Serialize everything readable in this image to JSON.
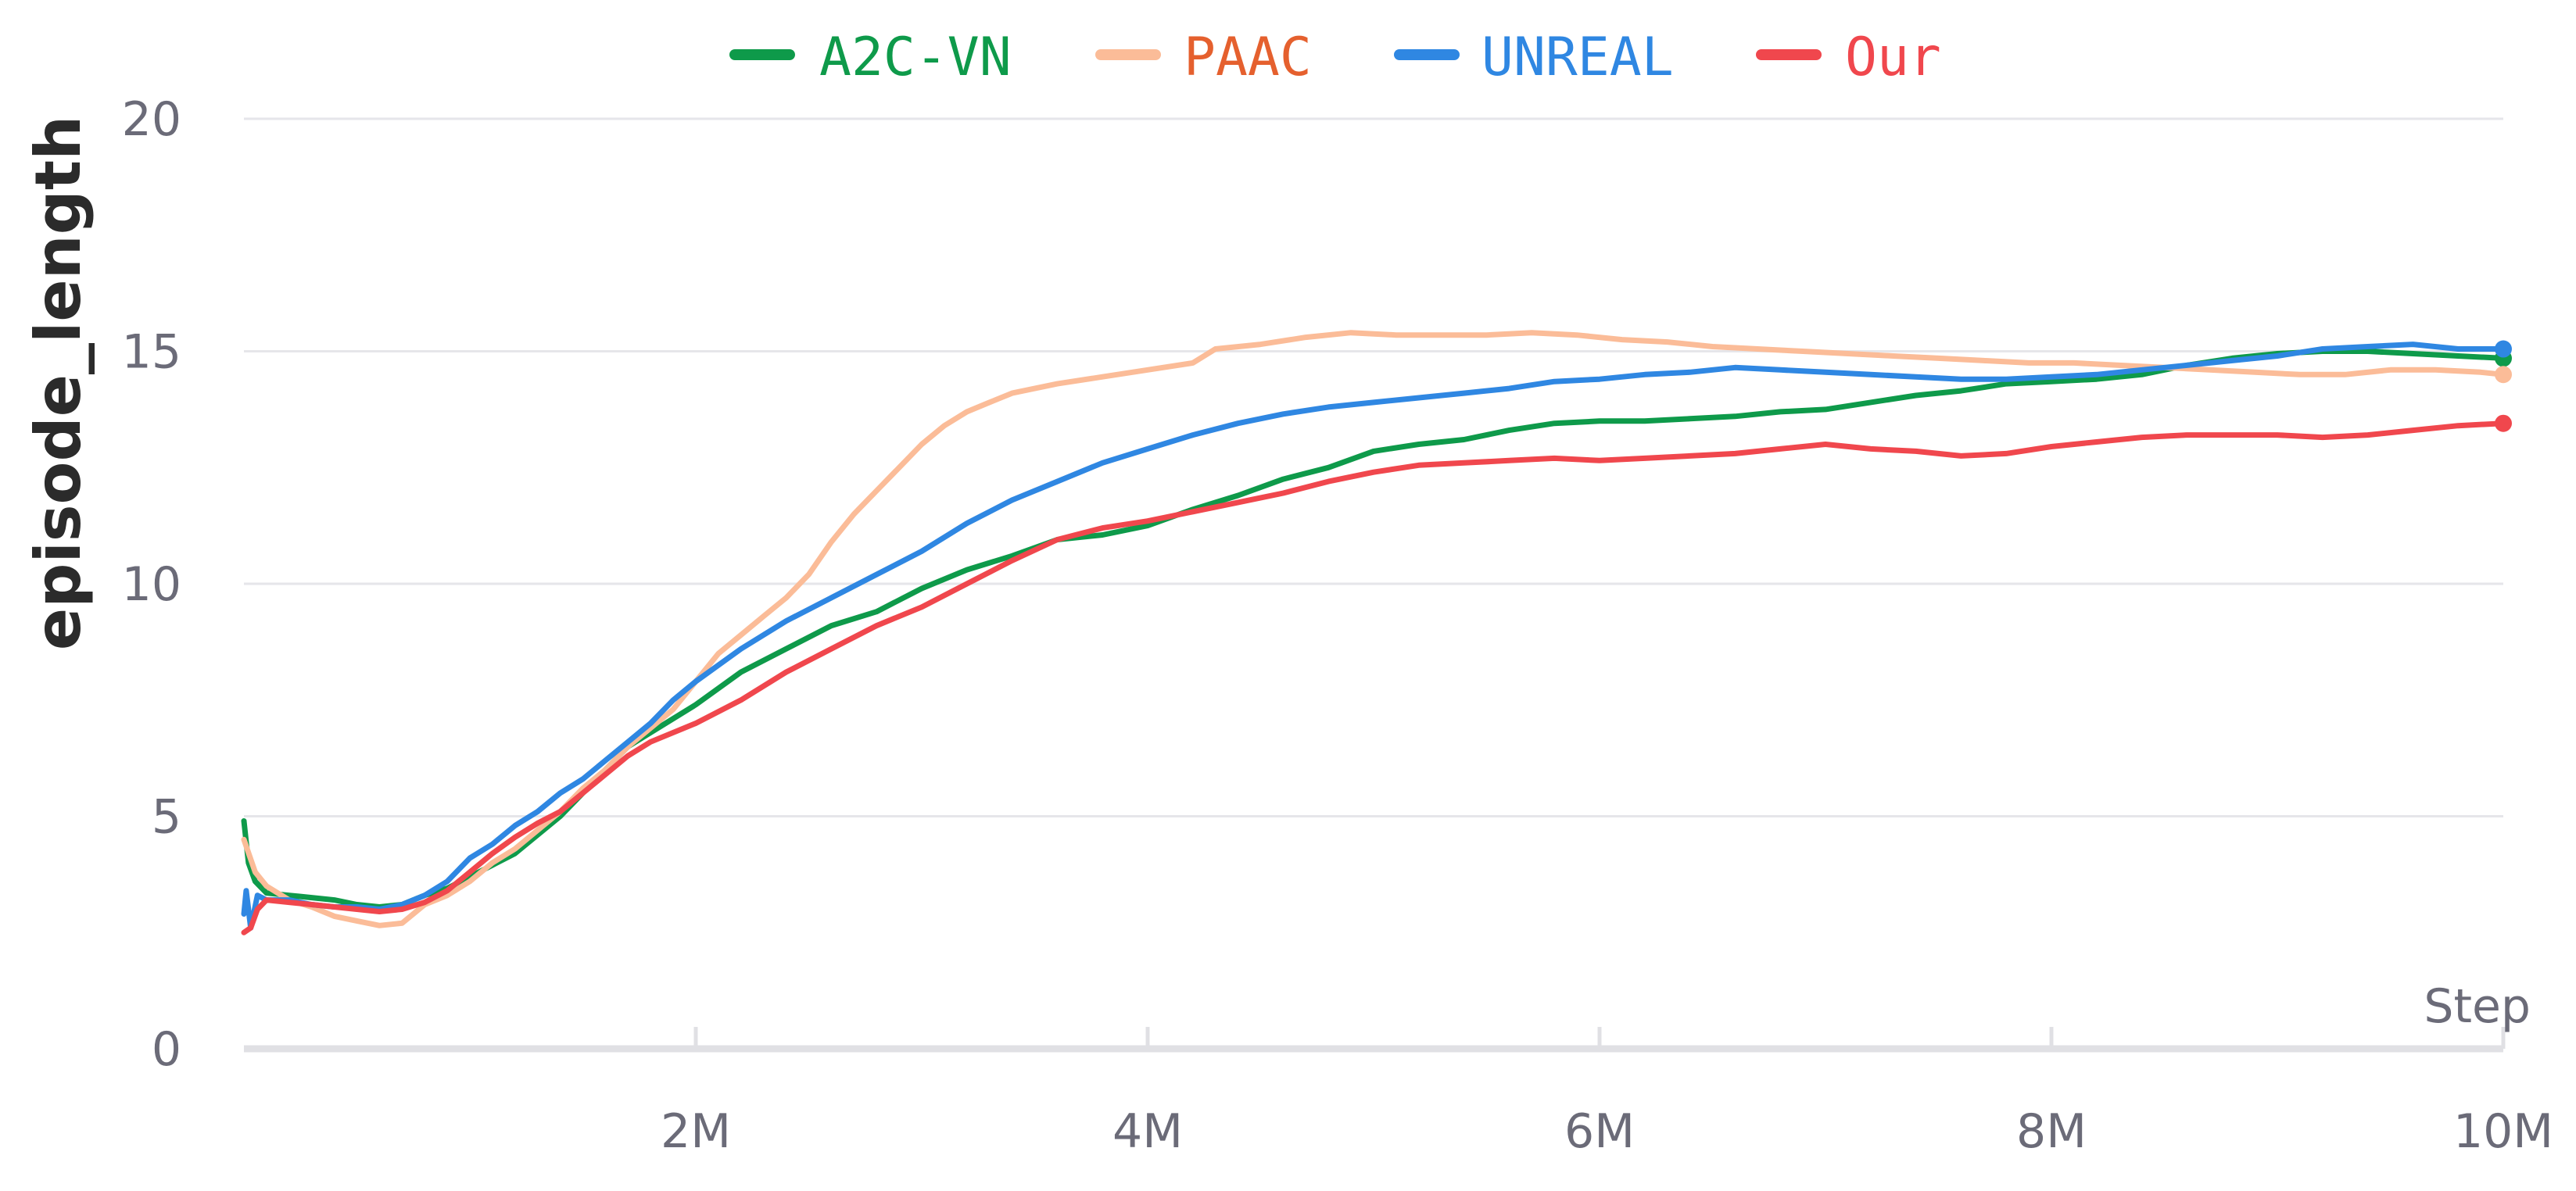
{
  "chart_data": {
    "type": "line",
    "title": "",
    "xlabel": "Step",
    "ylabel": "episode_length",
    "xlim": [
      0,
      10000000
    ],
    "ylim": [
      0,
      20
    ],
    "grid": true,
    "legend_position": "top-center",
    "x_ticks": [
      {
        "value": 2000000,
        "label": "2M"
      },
      {
        "value": 4000000,
        "label": "4M"
      },
      {
        "value": 6000000,
        "label": "6M"
      },
      {
        "value": 8000000,
        "label": "8M"
      },
      {
        "value": 10000000,
        "label": "10M"
      }
    ],
    "y_ticks": [
      {
        "value": 0,
        "label": "0"
      },
      {
        "value": 5,
        "label": "5"
      },
      {
        "value": 10,
        "label": "10"
      },
      {
        "value": 15,
        "label": "15"
      },
      {
        "value": 20,
        "label": "20"
      }
    ],
    "series": [
      {
        "name": "A2C-VN",
        "color": "#0e9a4a",
        "label_color": "#0e9a4a",
        "points": [
          [
            0,
            4.9
          ],
          [
            20000,
            4.0
          ],
          [
            50000,
            3.6
          ],
          [
            100000,
            3.35
          ],
          [
            200000,
            3.3
          ],
          [
            300000,
            3.25
          ],
          [
            400000,
            3.2
          ],
          [
            500000,
            3.1
          ],
          [
            600000,
            3.05
          ],
          [
            700000,
            3.1
          ],
          [
            800000,
            3.3
          ],
          [
            900000,
            3.45
          ],
          [
            1000000,
            3.7
          ],
          [
            1100000,
            3.95
          ],
          [
            1200000,
            4.2
          ],
          [
            1300000,
            4.6
          ],
          [
            1400000,
            5.0
          ],
          [
            1500000,
            5.5
          ],
          [
            1600000,
            6.0
          ],
          [
            1700000,
            6.5
          ],
          [
            1800000,
            6.8
          ],
          [
            2000000,
            7.4
          ],
          [
            2200000,
            8.1
          ],
          [
            2400000,
            8.6
          ],
          [
            2600000,
            9.1
          ],
          [
            2800000,
            9.4
          ],
          [
            3000000,
            9.9
          ],
          [
            3200000,
            10.3
          ],
          [
            3400000,
            10.6
          ],
          [
            3600000,
            10.95
          ],
          [
            3800000,
            11.05
          ],
          [
            4000000,
            11.25
          ],
          [
            4200000,
            11.6
          ],
          [
            4400000,
            11.9
          ],
          [
            4600000,
            12.25
          ],
          [
            4800000,
            12.5
          ],
          [
            5000000,
            12.85
          ],
          [
            5200000,
            13.0
          ],
          [
            5400000,
            13.1
          ],
          [
            5600000,
            13.3
          ],
          [
            5800000,
            13.45
          ],
          [
            6000000,
            13.5
          ],
          [
            6200000,
            13.5
          ],
          [
            6400000,
            13.55
          ],
          [
            6600000,
            13.6
          ],
          [
            6800000,
            13.7
          ],
          [
            7000000,
            13.75
          ],
          [
            7200000,
            13.9
          ],
          [
            7400000,
            14.05
          ],
          [
            7600000,
            14.15
          ],
          [
            7800000,
            14.3
          ],
          [
            8000000,
            14.35
          ],
          [
            8200000,
            14.4
          ],
          [
            8400000,
            14.5
          ],
          [
            8600000,
            14.7
          ],
          [
            8800000,
            14.85
          ],
          [
            9000000,
            14.95
          ],
          [
            9200000,
            15.0
          ],
          [
            9400000,
            15.0
          ],
          [
            9600000,
            14.95
          ],
          [
            9800000,
            14.9
          ],
          [
            10000000,
            14.85
          ]
        ]
      },
      {
        "name": "PAAC",
        "color": "#fbbc98",
        "label_color": "#e5602e",
        "points": [
          [
            0,
            4.5
          ],
          [
            50000,
            3.8
          ],
          [
            100000,
            3.5
          ],
          [
            200000,
            3.2
          ],
          [
            300000,
            3.05
          ],
          [
            400000,
            2.85
          ],
          [
            500000,
            2.75
          ],
          [
            600000,
            2.65
          ],
          [
            700000,
            2.7
          ],
          [
            800000,
            3.1
          ],
          [
            900000,
            3.3
          ],
          [
            1000000,
            3.6
          ],
          [
            1100000,
            4.0
          ],
          [
            1200000,
            4.3
          ],
          [
            1300000,
            4.7
          ],
          [
            1400000,
            5.1
          ],
          [
            1500000,
            5.6
          ],
          [
            1600000,
            6.0
          ],
          [
            1700000,
            6.5
          ],
          [
            1800000,
            6.9
          ],
          [
            1900000,
            7.3
          ],
          [
            2000000,
            7.9
          ],
          [
            2100000,
            8.5
          ],
          [
            2200000,
            8.9
          ],
          [
            2300000,
            9.3
          ],
          [
            2400000,
            9.7
          ],
          [
            2500000,
            10.2
          ],
          [
            2600000,
            10.9
          ],
          [
            2700000,
            11.5
          ],
          [
            2800000,
            12.0
          ],
          [
            2900000,
            12.5
          ],
          [
            3000000,
            13.0
          ],
          [
            3100000,
            13.4
          ],
          [
            3200000,
            13.7
          ],
          [
            3300000,
            13.9
          ],
          [
            3400000,
            14.1
          ],
          [
            3600000,
            14.3
          ],
          [
            3800000,
            14.45
          ],
          [
            4000000,
            14.6
          ],
          [
            4200000,
            14.75
          ],
          [
            4300000,
            15.05
          ],
          [
            4500000,
            15.15
          ],
          [
            4700000,
            15.3
          ],
          [
            4900000,
            15.4
          ],
          [
            5100000,
            15.35
          ],
          [
            5300000,
            15.35
          ],
          [
            5500000,
            15.35
          ],
          [
            5700000,
            15.4
          ],
          [
            5900000,
            15.35
          ],
          [
            6100000,
            15.25
          ],
          [
            6300000,
            15.2
          ],
          [
            6500000,
            15.1
          ],
          [
            6700000,
            15.05
          ],
          [
            6900000,
            15.0
          ],
          [
            7100000,
            14.95
          ],
          [
            7300000,
            14.9
          ],
          [
            7500000,
            14.85
          ],
          [
            7700000,
            14.8
          ],
          [
            7900000,
            14.75
          ],
          [
            8100000,
            14.75
          ],
          [
            8300000,
            14.7
          ],
          [
            8500000,
            14.65
          ],
          [
            8700000,
            14.6
          ],
          [
            8900000,
            14.55
          ],
          [
            9100000,
            14.5
          ],
          [
            9300000,
            14.5
          ],
          [
            9500000,
            14.6
          ],
          [
            9700000,
            14.6
          ],
          [
            9900000,
            14.55
          ],
          [
            10000000,
            14.5
          ]
        ]
      },
      {
        "name": "UNREAL",
        "color": "#2f87e2",
        "label_color": "#2f87e2",
        "points": [
          [
            0,
            2.9
          ],
          [
            10000,
            3.4
          ],
          [
            30000,
            2.6
          ],
          [
            60000,
            3.3
          ],
          [
            100000,
            3.2
          ],
          [
            200000,
            3.2
          ],
          [
            300000,
            3.1
          ],
          [
            400000,
            3.05
          ],
          [
            500000,
            3.05
          ],
          [
            600000,
            3.0
          ],
          [
            700000,
            3.1
          ],
          [
            800000,
            3.3
          ],
          [
            900000,
            3.6
          ],
          [
            1000000,
            4.1
          ],
          [
            1100000,
            4.4
          ],
          [
            1200000,
            4.8
          ],
          [
            1300000,
            5.1
          ],
          [
            1400000,
            5.5
          ],
          [
            1500000,
            5.8
          ],
          [
            1600000,
            6.2
          ],
          [
            1700000,
            6.6
          ],
          [
            1800000,
            7.0
          ],
          [
            1900000,
            7.5
          ],
          [
            2000000,
            7.9
          ],
          [
            2200000,
            8.6
          ],
          [
            2400000,
            9.2
          ],
          [
            2600000,
            9.7
          ],
          [
            2800000,
            10.2
          ],
          [
            3000000,
            10.7
          ],
          [
            3200000,
            11.3
          ],
          [
            3400000,
            11.8
          ],
          [
            3600000,
            12.2
          ],
          [
            3800000,
            12.6
          ],
          [
            4000000,
            12.9
          ],
          [
            4200000,
            13.2
          ],
          [
            4400000,
            13.45
          ],
          [
            4600000,
            13.65
          ],
          [
            4800000,
            13.8
          ],
          [
            5000000,
            13.9
          ],
          [
            5200000,
            14.0
          ],
          [
            5400000,
            14.1
          ],
          [
            5600000,
            14.2
          ],
          [
            5800000,
            14.35
          ],
          [
            6000000,
            14.4
          ],
          [
            6200000,
            14.5
          ],
          [
            6400000,
            14.55
          ],
          [
            6600000,
            14.65
          ],
          [
            6800000,
            14.6
          ],
          [
            7000000,
            14.55
          ],
          [
            7200000,
            14.5
          ],
          [
            7400000,
            14.45
          ],
          [
            7600000,
            14.4
          ],
          [
            7800000,
            14.4
          ],
          [
            8000000,
            14.45
          ],
          [
            8200000,
            14.5
          ],
          [
            8400000,
            14.6
          ],
          [
            8600000,
            14.7
          ],
          [
            8800000,
            14.8
          ],
          [
            9000000,
            14.9
          ],
          [
            9200000,
            15.05
          ],
          [
            9400000,
            15.1
          ],
          [
            9600000,
            15.15
          ],
          [
            9800000,
            15.05
          ],
          [
            10000000,
            15.05
          ]
        ]
      },
      {
        "name": "Our",
        "color": "#f0474d",
        "label_color": "#f0474d",
        "points": [
          [
            0,
            2.5
          ],
          [
            30000,
            2.6
          ],
          [
            60000,
            3.0
          ],
          [
            100000,
            3.2
          ],
          [
            200000,
            3.15
          ],
          [
            300000,
            3.1
          ],
          [
            400000,
            3.05
          ],
          [
            500000,
            3.0
          ],
          [
            600000,
            2.95
          ],
          [
            700000,
            3.0
          ],
          [
            800000,
            3.15
          ],
          [
            900000,
            3.4
          ],
          [
            1000000,
            3.8
          ],
          [
            1100000,
            4.2
          ],
          [
            1200000,
            4.55
          ],
          [
            1300000,
            4.85
          ],
          [
            1400000,
            5.1
          ],
          [
            1500000,
            5.5
          ],
          [
            1600000,
            5.9
          ],
          [
            1700000,
            6.3
          ],
          [
            1800000,
            6.6
          ],
          [
            2000000,
            7.0
          ],
          [
            2200000,
            7.5
          ],
          [
            2400000,
            8.1
          ],
          [
            2600000,
            8.6
          ],
          [
            2800000,
            9.1
          ],
          [
            3000000,
            9.5
          ],
          [
            3200000,
            10.0
          ],
          [
            3400000,
            10.5
          ],
          [
            3600000,
            10.95
          ],
          [
            3800000,
            11.2
          ],
          [
            4000000,
            11.35
          ],
          [
            4200000,
            11.55
          ],
          [
            4400000,
            11.75
          ],
          [
            4600000,
            11.95
          ],
          [
            4800000,
            12.2
          ],
          [
            5000000,
            12.4
          ],
          [
            5200000,
            12.55
          ],
          [
            5400000,
            12.6
          ],
          [
            5600000,
            12.65
          ],
          [
            5800000,
            12.7
          ],
          [
            6000000,
            12.65
          ],
          [
            6200000,
            12.7
          ],
          [
            6400000,
            12.75
          ],
          [
            6600000,
            12.8
          ],
          [
            6800000,
            12.9
          ],
          [
            7000000,
            13.0
          ],
          [
            7200000,
            12.9
          ],
          [
            7400000,
            12.85
          ],
          [
            7600000,
            12.75
          ],
          [
            7800000,
            12.8
          ],
          [
            8000000,
            12.95
          ],
          [
            8200000,
            13.05
          ],
          [
            8400000,
            13.15
          ],
          [
            8600000,
            13.2
          ],
          [
            8800000,
            13.2
          ],
          [
            9000000,
            13.2
          ],
          [
            9200000,
            13.15
          ],
          [
            9400000,
            13.2
          ],
          [
            9600000,
            13.3
          ],
          [
            9800000,
            13.4
          ],
          [
            10000000,
            13.45
          ]
        ]
      }
    ]
  }
}
